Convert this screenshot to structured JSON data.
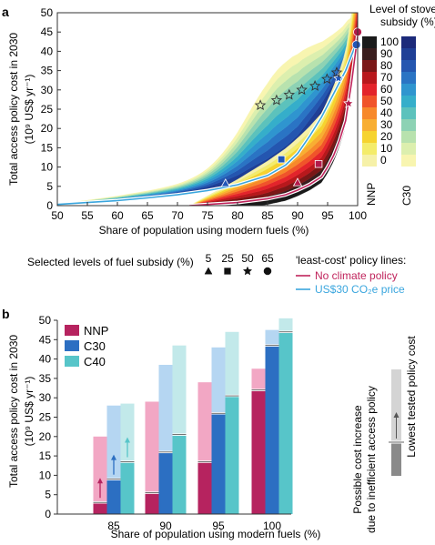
{
  "panel_a": {
    "label": "a",
    "legend_title_line1": "Level of stove",
    "legend_title_line2": "subsidy (%)",
    "subsidy_levels": [
      "100",
      "90",
      "80",
      "70",
      "60",
      "50",
      "40",
      "30",
      "20",
      "10",
      "0"
    ],
    "nnp_colors": [
      "#1a1a1a",
      "#3a1d1d",
      "#7a1717",
      "#b8181c",
      "#e3242b",
      "#f0542a",
      "#f7892b",
      "#f8ae32",
      "#f6d32f",
      "#f4ec6a",
      "#f6f1a8"
    ],
    "c30_colors": [
      "#1c2a7a",
      "#1f3f96",
      "#2456b0",
      "#2a74c4",
      "#2f95cf",
      "#35aeca",
      "#5cc2bc",
      "#8dd2b4",
      "#b8e2ae",
      "#dcefae",
      "#f8f5b0"
    ],
    "nnp_label": "NNP",
    "c30_label": "C30",
    "marker_legend_title": "Selected levels of fuel subsidy (%)",
    "marker_levels": [
      {
        "value": "5",
        "symbol": "triangle"
      },
      {
        "value": "25",
        "symbol": "square"
      },
      {
        "value": "50",
        "symbol": "star"
      },
      {
        "value": "65",
        "symbol": "circle"
      }
    ],
    "policy_title": "'least-cost' policy lines:",
    "policy_lines": [
      {
        "label": "No climate policy",
        "color": "#c0245c"
      },
      {
        "label": "US$30 CO₂e price",
        "color": "#3aa6de"
      }
    ]
  },
  "panel_b": {
    "label": "b",
    "annotation_line1": "Possible cost increase",
    "annotation_line2": "due to inefficient access policy",
    "annotation_lowest": "Lowest tested policy cost"
  },
  "chart_data": [
    {
      "type": "area",
      "title": "",
      "xlabel": "Share of population using modern fuels (%)",
      "ylabel": "Total access policy cost in 2030 (10⁹ US$ yr⁻¹)",
      "xlim": [
        50,
        100
      ],
      "ylim": [
        0,
        50
      ],
      "xticks": [
        50,
        55,
        60,
        65,
        70,
        75,
        80,
        85,
        90,
        95,
        100
      ],
      "yticks": [
        0,
        5,
        10,
        15,
        20,
        25,
        30,
        35,
        40,
        45,
        50
      ],
      "grid": false,
      "series": [
        {
          "name": "NNP",
          "x": [
            72,
            80,
            85,
            88,
            90,
            92,
            94,
            95,
            96,
            97,
            98,
            99,
            100
          ],
          "values": [
            0,
            0.8,
            1.8,
            2.8,
            4,
            5.5,
            7.5,
            10,
            13,
            17,
            22,
            32,
            44
          ]
        },
        {
          "name": "US$30 CO₂e price",
          "x": [
            50,
            55,
            60,
            65,
            70,
            75,
            80,
            85,
            88,
            90,
            92,
            94,
            96,
            97,
            98,
            99,
            100
          ],
          "values": [
            0.3,
            0.8,
            1.3,
            2.0,
            2.8,
            3.9,
            5.4,
            7.8,
            10.5,
            13.5,
            18,
            23,
            29,
            32,
            35,
            39,
            43
          ]
        }
      ],
      "marker_series": [
        {
          "name": "NNP 5",
          "symbol": "triangle",
          "x": [
            90
          ],
          "y": [
            6
          ]
        },
        {
          "name": "NNP 25",
          "symbol": "square",
          "x": [
            93.5
          ],
          "y": [
            10.8
          ]
        },
        {
          "name": "NNP 50",
          "symbol": "star",
          "x": [
            98.5
          ],
          "y": [
            26.5
          ]
        },
        {
          "name": "NNP 65",
          "symbol": "circle",
          "x": [
            100
          ],
          "y": [
            45
          ]
        },
        {
          "name": "C30 5",
          "symbol": "triangle",
          "x": [
            78
          ],
          "y": [
            5.8
          ]
        },
        {
          "name": "C30 25",
          "symbol": "square",
          "x": [
            87.3
          ],
          "y": [
            12
          ]
        },
        {
          "name": "C30 50",
          "symbol": "star",
          "x": [
            96.8
          ],
          "y": [
            33
          ]
        },
        {
          "name": "C30 65",
          "symbol": "circle",
          "x": [
            99.8
          ],
          "y": [
            41.7
          ]
        },
        {
          "name": "Stars upper",
          "symbol": "star",
          "x": [
            83.8,
            86.5,
            88.6,
            90.7,
            92.9,
            94.9,
            96.5
          ],
          "y": [
            26,
            27.3,
            28.7,
            30,
            31,
            32.8,
            34.5
          ]
        }
      ]
    },
    {
      "type": "bar",
      "title": "",
      "xlabel": "Share of population using modern fuels (%)",
      "ylabel": "Total access policy cost in 2030 (10⁹ US$ yr⁻¹)",
      "categories": [
        "85",
        "90",
        "95",
        "100"
      ],
      "ylim": [
        0,
        50
      ],
      "yticks": [
        0,
        5,
        10,
        15,
        20,
        25,
        30,
        35,
        40,
        45,
        50
      ],
      "grid": false,
      "legend_position": "top-left",
      "series": [
        {
          "name": "NNP",
          "color": "#b6235f",
          "light": "#f2a7c4",
          "values": [
            3,
            5.5,
            13.5,
            32
          ],
          "possible_max": [
            20,
            29,
            34,
            37.5
          ]
        },
        {
          "name": "C30",
          "color": "#2c6fc2",
          "light": "#b5d6f2",
          "values": [
            9,
            16,
            26,
            43.5
          ],
          "possible_max": [
            28,
            38.5,
            43,
            47.5
          ]
        },
        {
          "name": "C40",
          "color": "#57c5c9",
          "light": "#c2e9ea",
          "values": [
            13.5,
            20.5,
            30.5,
            47
          ],
          "possible_max": [
            28.5,
            43.5,
            47,
            50.5
          ]
        }
      ]
    }
  ]
}
